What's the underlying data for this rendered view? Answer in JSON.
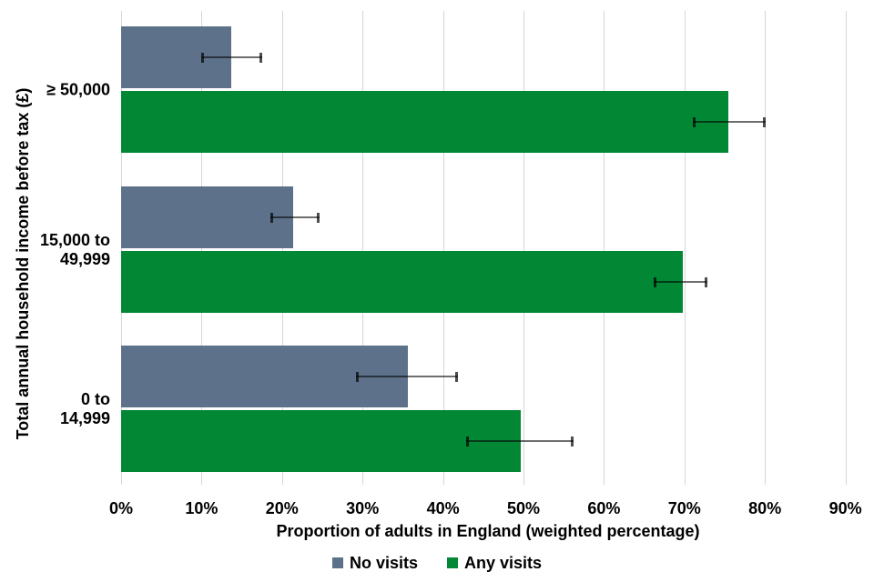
{
  "figure": {
    "background": "#ffffff",
    "text_color": "#000000"
  },
  "chart_data": {
    "type": "bar",
    "orientation": "horizontal",
    "title": "",
    "xlabel": "Proportion of adults in England (weighted percentage)",
    "ylabel": "Total annual household income before tax (£)",
    "categories": [
      "≥ 50,000",
      "15,000 to 49,999",
      "0 to 14,999"
    ],
    "category_display_lines": [
      [
        "≥ 50,000"
      ],
      [
        "15,000 to",
        "49,999"
      ],
      [
        "0 to",
        "14,999"
      ]
    ],
    "series": [
      {
        "name": "No visits",
        "color": "#5d728a",
        "values": [
          13.7,
          21.4,
          35.6
        ],
        "ci_low": [
          10.0,
          18.6,
          29.2
        ],
        "ci_high": [
          17.5,
          24.7,
          41.9
        ]
      },
      {
        "name": "Any visits",
        "color": "#028835",
        "values": [
          75.4,
          69.8,
          49.6
        ],
        "ci_low": [
          71.0,
          66.2,
          42.9
        ],
        "ci_high": [
          80.1,
          72.9,
          56.2
        ]
      }
    ],
    "x_ticks": {
      "values": [
        0,
        10,
        20,
        30,
        40,
        50,
        60,
        70,
        80,
        90
      ],
      "labels": [
        "0%",
        "10%",
        "20%",
        "30%",
        "40%",
        "50%",
        "60%",
        "70%",
        "80%",
        "90%"
      ]
    },
    "xlim": [
      0,
      90
    ],
    "grid": "vertical",
    "gridline_color": "#d6d6d6",
    "error_bar_line_color": "#6e6e6e",
    "error_bar_cap_color": "#4d4d4d",
    "legend_position": "bottom"
  }
}
